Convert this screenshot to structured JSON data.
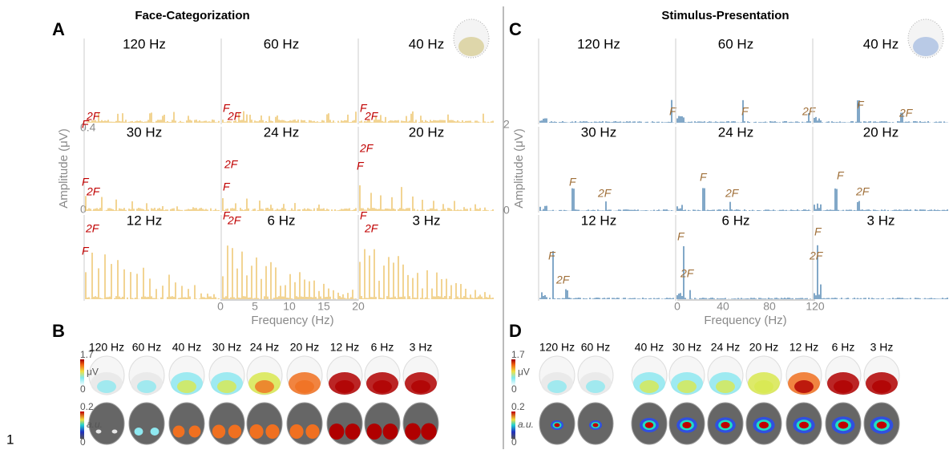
{
  "page_number": "1",
  "spectra_panels": [
    {
      "letter": "A",
      "title": "Face-Categorization",
      "y_axis_label": "Amplitude (μV)",
      "y_tick_labels": [
        "0.4",
        "0"
      ],
      "x_axis_label": "Frequency (Hz)",
      "x_tick_labels": [
        "0",
        "5",
        "10",
        "15",
        "20"
      ],
      "subplots": [
        {
          "label": "120 Hz",
          "markers": [
            "2F",
            "F"
          ]
        },
        {
          "label": "60 Hz",
          "markers": [
            "F",
            "2F"
          ]
        },
        {
          "label": "40 Hz",
          "markers": [
            "F",
            "2F"
          ]
        },
        {
          "label": "30 Hz",
          "markers": [
            "F",
            "2F"
          ]
        },
        {
          "label": "24 Hz",
          "markers": [
            "2F",
            "F"
          ]
        },
        {
          "label": "20 Hz",
          "markers": [
            "2F",
            "F"
          ]
        },
        {
          "label": "12 Hz",
          "markers": [
            "2F",
            "F"
          ]
        },
        {
          "label": "6 Hz",
          "markers": [
            "F",
            "2F"
          ]
        },
        {
          "label": "3 Hz",
          "markers": [
            "F",
            "2F"
          ]
        }
      ]
    },
    {
      "letter": "C",
      "title": "Stimulus-Presentation",
      "y_axis_label": "Amplitude (μV)",
      "y_tick_labels": [
        "2",
        "0"
      ],
      "x_axis_label": "Frequency (Hz)",
      "x_tick_labels": [
        "0",
        "40",
        "80",
        "120"
      ],
      "subplots": [
        {
          "label": "120 Hz",
          "markers": [
            "F"
          ]
        },
        {
          "label": "60 Hz",
          "markers": [
            "F",
            "2F"
          ]
        },
        {
          "label": "40 Hz",
          "markers": [
            "F",
            "2F"
          ]
        },
        {
          "label": "30 Hz",
          "markers": [
            "F",
            "2F"
          ]
        },
        {
          "label": "24 Hz",
          "markers": [
            "F",
            "2F"
          ]
        },
        {
          "label": "20 Hz",
          "markers": [
            "F",
            "2F"
          ]
        },
        {
          "label": "12 Hz",
          "markers": [
            "F",
            "2F"
          ]
        },
        {
          "label": "6 Hz",
          "markers": [
            "F",
            "2F"
          ]
        },
        {
          "label": "3 Hz",
          "markers": [
            "F",
            "2F"
          ]
        }
      ]
    }
  ],
  "topo_panels": [
    {
      "letter": "B",
      "labels": [
        "120 Hz",
        "60 Hz",
        "40 Hz",
        "30 Hz",
        "24 Hz",
        "20 Hz",
        "12 Hz",
        "6 Hz",
        "3 Hz"
      ],
      "scales": [
        {
          "max": "1.7",
          "unit": "μV",
          "min": "0"
        },
        {
          "max": "0.2",
          "unit": "a.u.",
          "min": "0"
        }
      ]
    },
    {
      "letter": "D",
      "labels": [
        "120 Hz",
        "60 Hz",
        "40 Hz",
        "30 Hz",
        "24 Hz",
        "20 Hz",
        "12 Hz",
        "6 Hz",
        "3 Hz"
      ],
      "scales": [
        {
          "max": "1.7",
          "unit": "μV",
          "min": "0"
        },
        {
          "max": "0.2",
          "unit": "a.u.",
          "min": "0"
        }
      ]
    }
  ]
}
